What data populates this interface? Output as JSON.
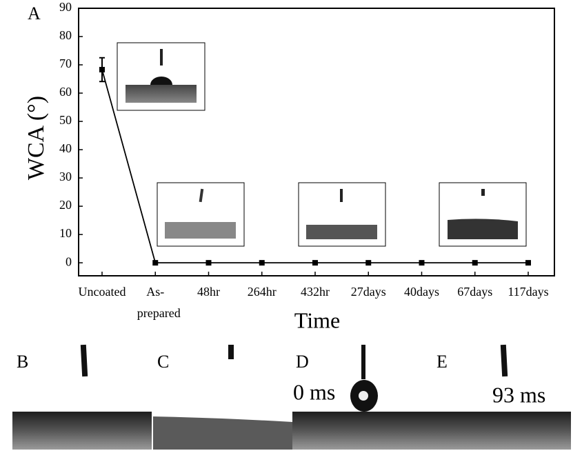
{
  "panel_label": "A",
  "chart_data": {
    "type": "line",
    "y_label": "WCA (°)",
    "x_label": "Time",
    "categories": [
      "Uncoated",
      "As-prepared",
      "48hr",
      "264hr",
      "432hr",
      "27days",
      "40days",
      "67days",
      "117days"
    ],
    "series": [
      {
        "color": "#000000",
        "values": [
          68.3,
          0,
          0,
          0,
          0,
          0,
          0,
          0,
          0
        ],
        "errors": [
          4.2,
          null,
          null,
          null,
          null,
          null,
          null,
          null,
          null
        ]
      }
    ],
    "ylim": [
      -4.6,
      90
    ],
    "yticks": [
      0,
      10,
      20,
      30,
      40,
      50,
      60,
      70,
      80,
      90
    ]
  },
  "panels": [
    {
      "label": "B"
    },
    {
      "label": "C"
    },
    {
      "label": "D",
      "annotation": "0 ms"
    },
    {
      "label": "E",
      "annotation": "93 ms"
    }
  ]
}
